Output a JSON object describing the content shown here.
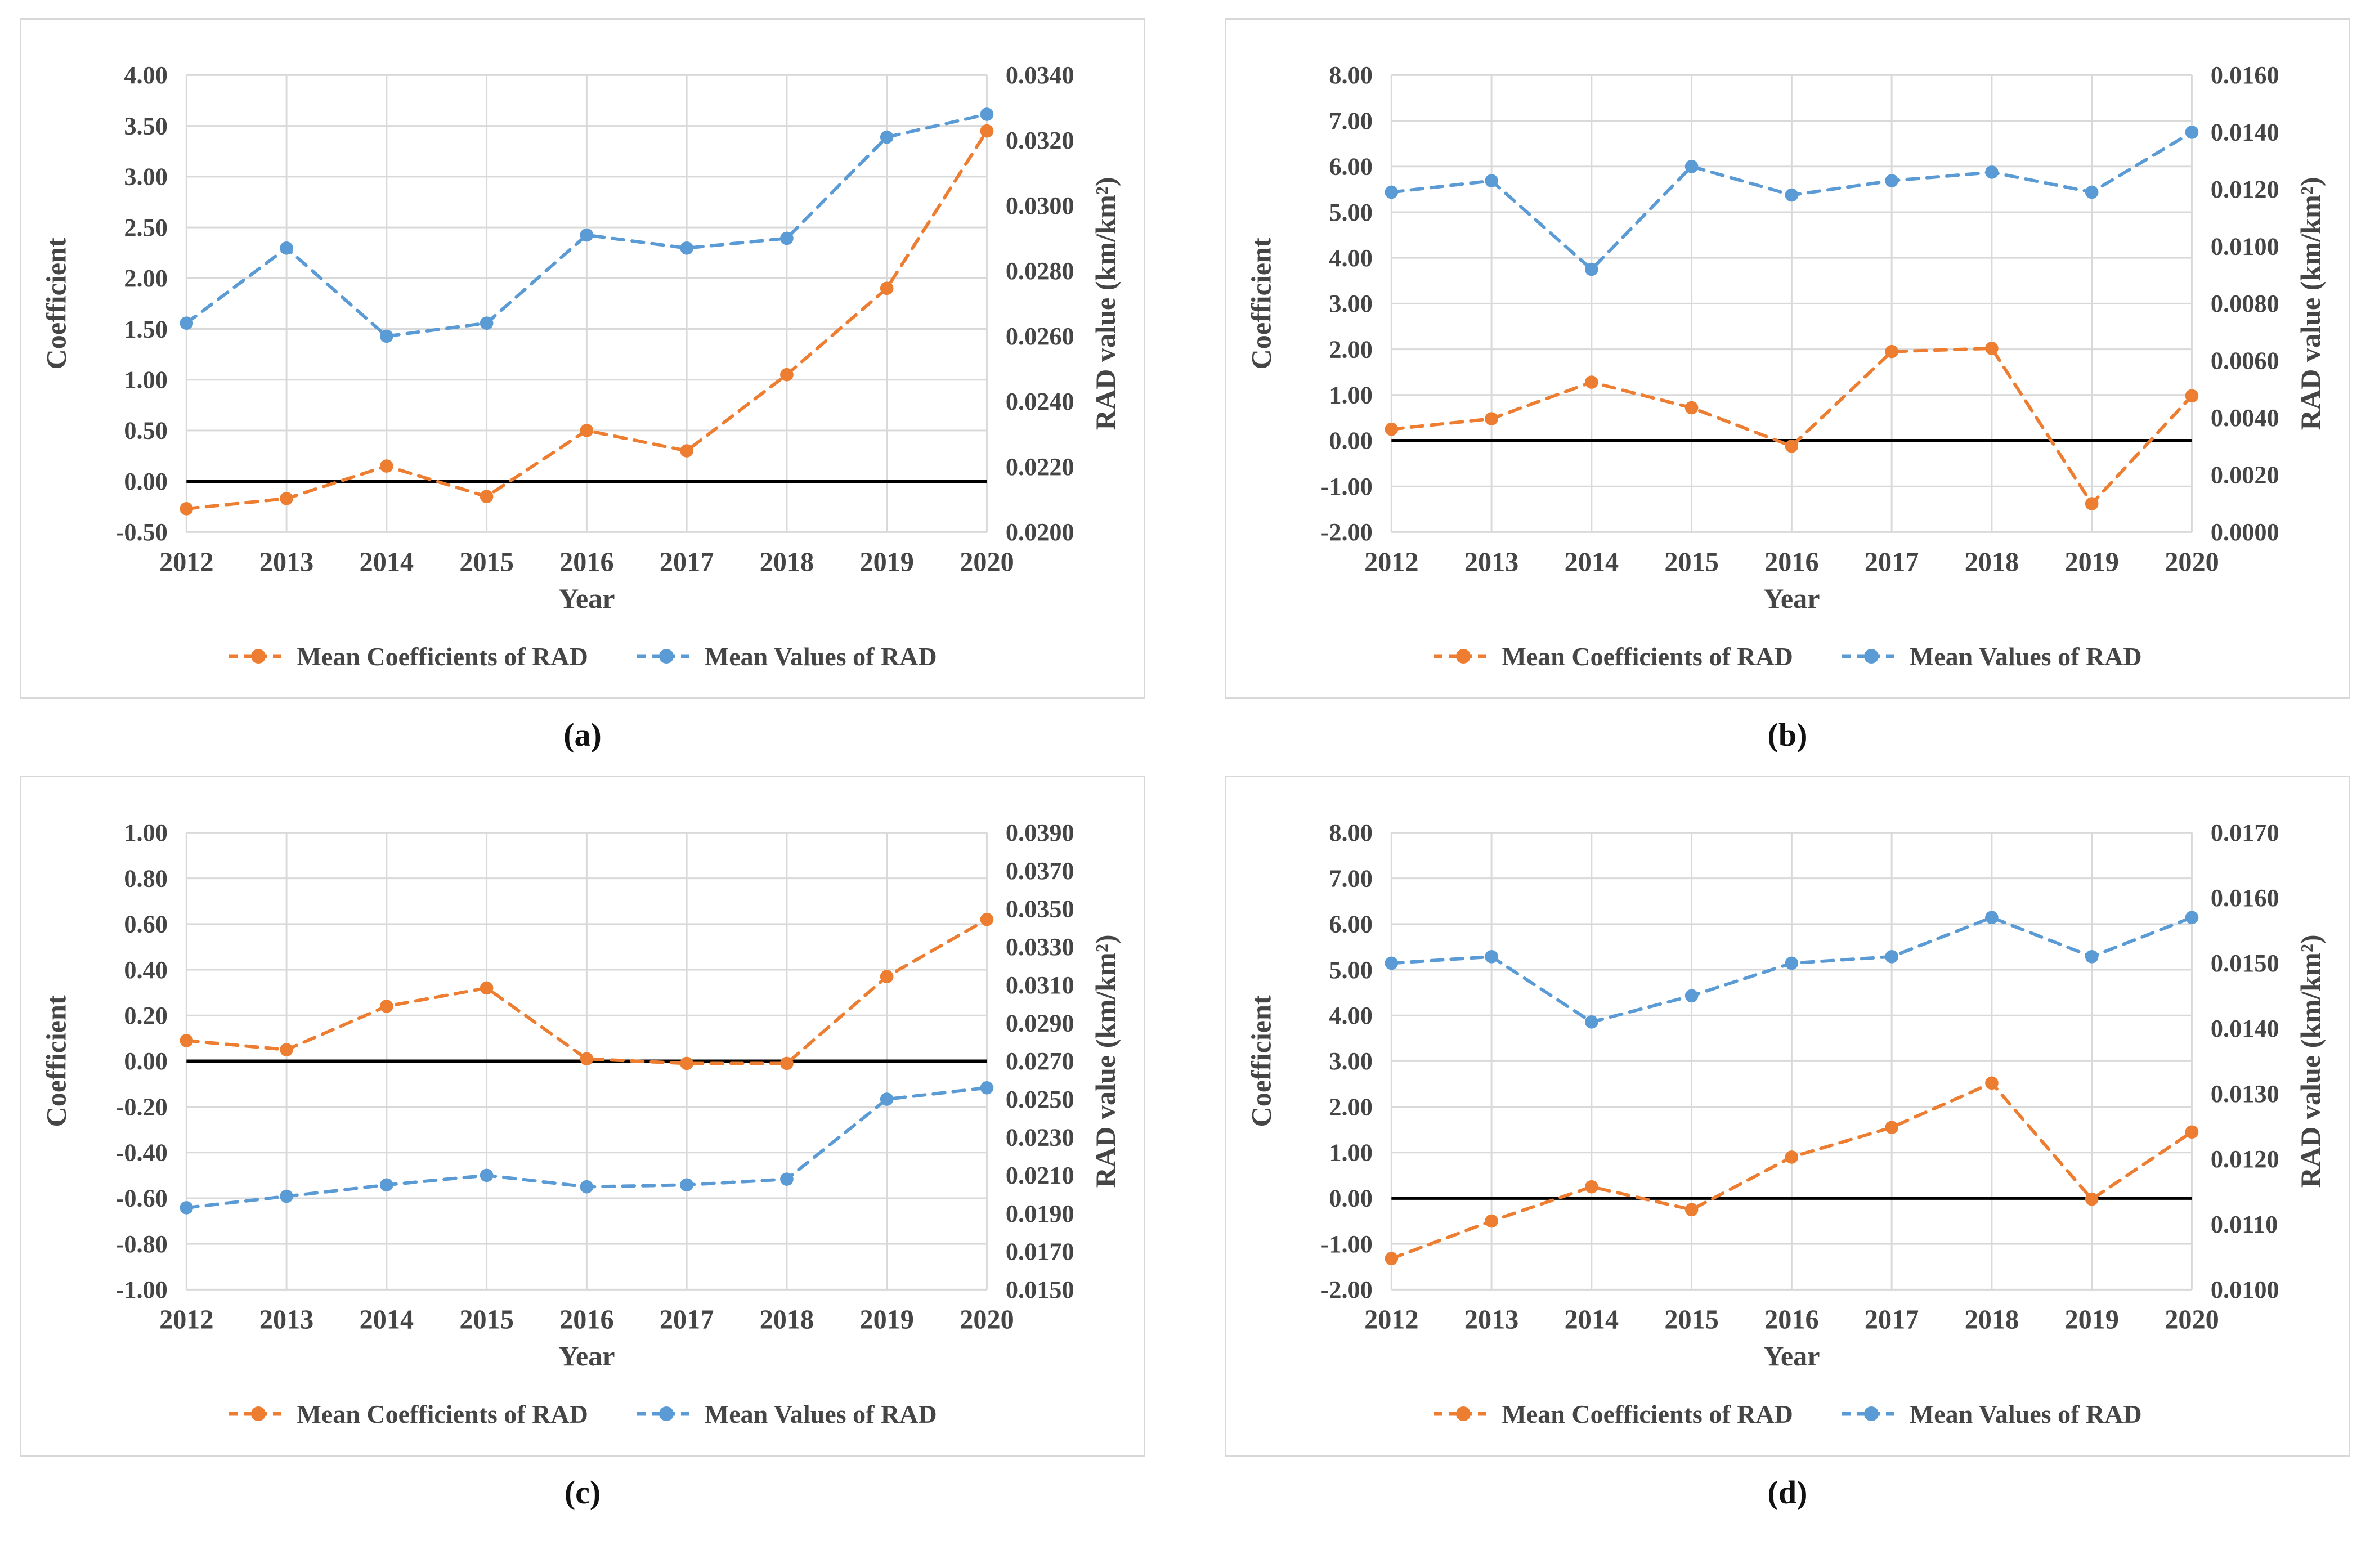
{
  "palette": {
    "coefficient_series": "#ED7D31",
    "rad_series": "#5B9BD5",
    "gridline": "#D9D9D9",
    "axis_text": "#454545",
    "zero_line": "#000000",
    "panel_border": "#D8D8D8"
  },
  "legend": {
    "coefficients_label": "Mean Coefficients of RAD",
    "values_label": "Mean Values of RAD"
  },
  "chart_data": [
    {
      "type": "line",
      "panel_label": "(a)",
      "x": [
        "2012",
        "2013",
        "2014",
        "2015",
        "2016",
        "2017",
        "2018",
        "2019",
        "2020"
      ],
      "xlabel": "Year",
      "left_axis": {
        "title": "Coefficient",
        "min": -0.5,
        "max": 4.0,
        "ticks": [
          "4.00",
          "3.50",
          "3.00",
          "2.50",
          "2.00",
          "1.50",
          "1.00",
          "0.50",
          "0.00",
          "-0.50"
        ]
      },
      "right_axis": {
        "title": "RAD value (km/km²)",
        "min": 0.02,
        "max": 0.034,
        "ticks": [
          "0.0340",
          "0.0320",
          "0.0300",
          "0.0280",
          "0.0260",
          "0.0240",
          "0.0220",
          "0.0200"
        ]
      },
      "zero_line": 0,
      "series": [
        {
          "name": "Mean Coefficients of RAD",
          "axis": "left",
          "values": [
            -0.27,
            -0.17,
            0.15,
            -0.15,
            0.5,
            0.3,
            1.05,
            1.9,
            3.45
          ]
        },
        {
          "name": "Mean Values of RAD",
          "axis": "right",
          "values": [
            0.0264,
            0.0287,
            0.026,
            0.0264,
            0.0291,
            0.0287,
            0.029,
            0.0321,
            0.0328
          ]
        }
      ]
    },
    {
      "type": "line",
      "panel_label": "(b)",
      "x": [
        "2012",
        "2013",
        "2014",
        "2015",
        "2016",
        "2017",
        "2018",
        "2019",
        "2020"
      ],
      "xlabel": "Year",
      "left_axis": {
        "title": "Coefficient",
        "min": -2.0,
        "max": 8.0,
        "ticks": [
          "8.00",
          "7.00",
          "6.00",
          "5.00",
          "4.00",
          "3.00",
          "2.00",
          "1.00",
          "0.00",
          "-1.00",
          "-2.00"
        ]
      },
      "right_axis": {
        "title": "RAD value (km/km²)",
        "min": 0.0,
        "max": 0.016,
        "ticks": [
          "0.0160",
          "0.0140",
          "0.0120",
          "0.0100",
          "0.0080",
          "0.0060",
          "0.0040",
          "0.0020",
          "0.0000"
        ]
      },
      "zero_line": 0,
      "series": [
        {
          "name": "Mean Coefficients of RAD",
          "axis": "left",
          "values": [
            0.25,
            0.48,
            1.28,
            0.72,
            -0.12,
            1.95,
            2.02,
            -1.38,
            0.98
          ]
        },
        {
          "name": "Mean Values of RAD",
          "axis": "right",
          "values": [
            0.0119,
            0.0123,
            0.0092,
            0.0128,
            0.0118,
            0.0123,
            0.0126,
            0.0119,
            0.014
          ]
        }
      ]
    },
    {
      "type": "line",
      "panel_label": "(c)",
      "x": [
        "2012",
        "2013",
        "2014",
        "2015",
        "2016",
        "2017",
        "2018",
        "2019",
        "2020"
      ],
      "xlabel": "Year",
      "left_axis": {
        "title": "Coefficient",
        "min": -1.0,
        "max": 1.0,
        "ticks": [
          "1.00",
          "0.80",
          "0.60",
          "0.40",
          "0.20",
          "0.00",
          "-0.20",
          "-0.40",
          "-0.60",
          "-0.80",
          "-1.00"
        ]
      },
      "right_axis": {
        "title": "RAD value (km/km²)",
        "min": 0.015,
        "max": 0.039,
        "ticks": [
          "0.0390",
          "0.0370",
          "0.0350",
          "0.0330",
          "0.0310",
          "0.0290",
          "0.0270",
          "0.0250",
          "0.0230",
          "0.0210",
          "0.0190",
          "0.0170",
          "0.0150"
        ]
      },
      "zero_line": 0,
      "series": [
        {
          "name": "Mean Coefficients of RAD",
          "axis": "left",
          "values": [
            0.09,
            0.05,
            0.24,
            0.32,
            0.01,
            -0.01,
            -0.01,
            0.37,
            0.62
          ]
        },
        {
          "name": "Mean Values of RAD",
          "axis": "right",
          "values": [
            0.0193,
            0.0199,
            0.0205,
            0.021,
            0.0204,
            0.0205,
            0.0208,
            0.025,
            0.0256
          ]
        }
      ]
    },
    {
      "type": "line",
      "panel_label": "(d)",
      "x": [
        "2012",
        "2013",
        "2014",
        "2015",
        "2016",
        "2017",
        "2018",
        "2019",
        "2020"
      ],
      "xlabel": "Year",
      "left_axis": {
        "title": "Coefficient",
        "min": -2.0,
        "max": 8.0,
        "ticks": [
          "8.00",
          "7.00",
          "6.00",
          "5.00",
          "4.00",
          "3.00",
          "2.00",
          "1.00",
          "0.00",
          "-1.00",
          "-2.00"
        ]
      },
      "right_axis": {
        "title": "RAD value (km/km²)",
        "min": 0.01,
        "max": 0.017,
        "ticks": [
          "0.0170",
          "0.0160",
          "0.0150",
          "0.0140",
          "0.0130",
          "0.0120",
          "0.0110",
          "0.0100"
        ]
      },
      "zero_line": 0,
      "series": [
        {
          "name": "Mean Coefficients of RAD",
          "axis": "left",
          "values": [
            -1.32,
            -0.5,
            0.25,
            -0.25,
            0.9,
            1.55,
            2.52,
            -0.02,
            1.45
          ]
        },
        {
          "name": "Mean Values of RAD",
          "axis": "right",
          "values": [
            0.015,
            0.0151,
            0.0141,
            0.0145,
            0.015,
            0.0151,
            0.0157,
            0.0151,
            0.0157
          ]
        }
      ]
    }
  ]
}
